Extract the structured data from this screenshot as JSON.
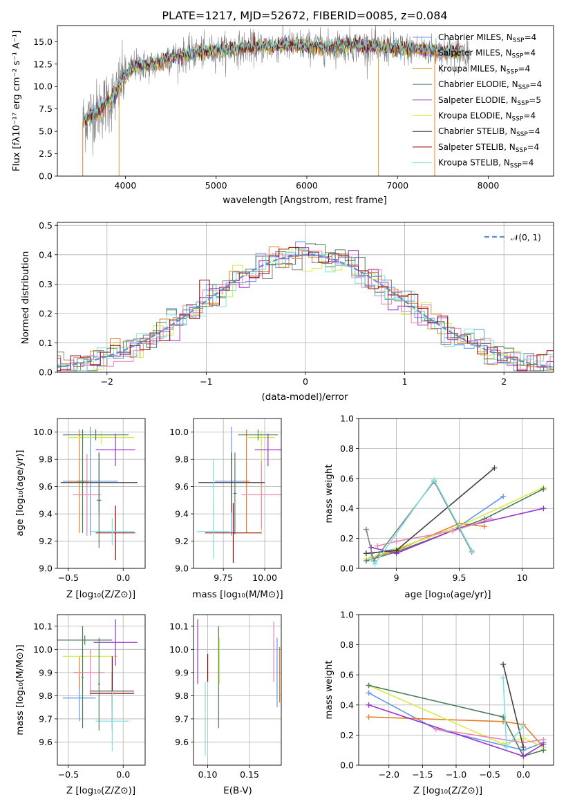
{
  "colors": {
    "chabrier_miles": "#6495ed",
    "salpeter_miles": "#e67e22",
    "kroupa_miles": "#d4a017",
    "chabrier_elodie": "#4a7c59",
    "salpeter_elodie": "#9932cc",
    "kroupa_elodie": "#d4ec4a",
    "chabrier_stelib": "#404040",
    "salpeter_stelib": "#8b0000",
    "kroupa_stelib": "#7fe0e0",
    "pink": "#ee82b0",
    "gauss": "#5b8ed6",
    "raw": "#808080"
  },
  "chart_data": [
    {
      "id": "spectrum",
      "type": "line",
      "title": "PLATE=1217, MJD=52672, FIBERID=0085, z=0.084",
      "xlabel": "wavelength [Angstrom, rest frame]",
      "ylabel": "Flux [fλ10⁻¹⁷ erg cm⁻² s⁻¹ A⁻¹]",
      "xlim": [
        3250,
        8720
      ],
      "ylim": [
        0,
        16.8
      ],
      "xticks": [
        4000,
        5000,
        6000,
        7000,
        8000
      ],
      "yticks": [
        0.0,
        2.5,
        5.0,
        7.5,
        10.0,
        12.5,
        15.0
      ],
      "grid": false,
      "legend_position": "right",
      "legend": [
        {
          "label": "Chabrier MILES, N",
          "sub": "SSP",
          "tail": "=4",
          "color_key": "chabrier_miles"
        },
        {
          "label": "Salpeter MILES, N",
          "sub": "SSP",
          "tail": "=4",
          "color_key": "salpeter_miles"
        },
        {
          "label": "Kroupa MILES, N",
          "sub": "SSP",
          "tail": "=4",
          "color_key": "kroupa_miles"
        },
        {
          "label": "Chabrier ELODIE, N",
          "sub": "SSP",
          "tail": "=4",
          "color_key": "chabrier_elodie"
        },
        {
          "label": "Salpeter ELODIE, N",
          "sub": "SSP",
          "tail": "=5",
          "color_key": "salpeter_elodie"
        },
        {
          "label": "Kroupa ELODIE, N",
          "sub": "SSP",
          "tail": "=4",
          "color_key": "kroupa_elodie"
        },
        {
          "label": "Chabrier STELIB, N",
          "sub": "SSP",
          "tail": "=4",
          "color_key": "chabrier_stelib"
        },
        {
          "label": "Salpeter STELIB, N",
          "sub": "SSP",
          "tail": "=4",
          "color_key": "salpeter_stelib"
        },
        {
          "label": "Kroupa STELIB, N",
          "sub": "SSP",
          "tail": "=4",
          "color_key": "kroupa_stelib"
        }
      ],
      "continuum": {
        "wavelength": [
          3530,
          3600,
          3700,
          3800,
          3900,
          3950,
          4000,
          4100,
          4300,
          4500,
          4700,
          5000,
          5300,
          5600,
          5900,
          6200,
          6500,
          6800,
          7100,
          7400,
          7700
        ],
        "flux": [
          6.0,
          6.8,
          7.3,
          8.3,
          9.0,
          10.5,
          11.3,
          12.3,
          12.4,
          13.2,
          13.6,
          14.0,
          14.3,
          14.5,
          14.6,
          14.4,
          14.6,
          14.3,
          14.2,
          14.0,
          13.8
        ]
      },
      "wavelength_range": [
        3530,
        7800
      ]
    },
    {
      "id": "residuals",
      "type": "histogram",
      "xlabel": "(data-model)/error",
      "ylabel": "Normed distribution",
      "xlim": [
        -2.5,
        2.5
      ],
      "ylim": [
        0,
        0.51
      ],
      "xticks": [
        -2,
        -1,
        0,
        1,
        2
      ],
      "xtick_labels": [
        "−2",
        "−1",
        "0",
        "1",
        "2"
      ],
      "yticks": [
        0.0,
        0.1,
        0.2,
        0.3,
        0.4,
        0.5
      ],
      "grid": true,
      "legend": [
        {
          "label": "𝒩(0, 1)",
          "color_key": "gauss"
        }
      ],
      "gaussian": {
        "mu": 0,
        "sigma": 1
      },
      "bin_width": 0.1
    },
    {
      "id": "age_vs_Z",
      "type": "errorbar",
      "xlabel": "Z [log₁₀(Z/Z⊙)]",
      "ylabel": "age  [log₁₀(age/yr)]",
      "xlim": [
        -0.6,
        0.2
      ],
      "ylim": [
        9.0,
        10.1
      ],
      "xticks": [
        -0.5,
        0.0
      ],
      "xtick_labels": [
        "−0.5",
        "0.0"
      ],
      "yticks": [
        9.0,
        9.2,
        9.4,
        9.6,
        9.8,
        10.0
      ],
      "grid": true,
      "series": [
        {
          "color_key": "chabrier_miles",
          "x": -0.3,
          "xerr": 0.25,
          "y": 9.64,
          "yerr": 0.4
        },
        {
          "color_key": "salpeter_miles",
          "x": -0.4,
          "xerr": 0.1,
          "y": 9.64,
          "yerr": 0.38
        },
        {
          "color_key": "kroupa_elodie",
          "x": -0.2,
          "xerr": 0.3,
          "y": 9.96,
          "yerr": 0.05
        },
        {
          "color_key": "chabrier_elodie",
          "x": -0.25,
          "xerr": 0.3,
          "y": 9.98,
          "yerr": 0.04
        },
        {
          "color_key": "chabrier_elodie",
          "x": -0.37,
          "xerr": 0.05,
          "y": 9.64,
          "yerr": 0.38
        },
        {
          "color_key": "salpeter_elodie",
          "x": -0.07,
          "xerr": 0.18,
          "y": 9.87,
          "yerr": 0.12
        },
        {
          "color_key": "pink",
          "x": -0.33,
          "xerr": 0.13,
          "y": 9.54,
          "yerr": 0.3
        },
        {
          "color_key": "chabrier_stelib",
          "x": -0.22,
          "xerr": 0.35,
          "y": 9.63,
          "yerr": 0.22
        },
        {
          "color_key": "salpeter_stelib",
          "x": -0.07,
          "xerr": 0.18,
          "y": 9.26,
          "yerr": 0.2
        },
        {
          "color_key": "kroupa_stelib",
          "x": -0.1,
          "xerr": 0.2,
          "y": 9.27,
          "yerr": 0.1
        },
        {
          "color_key": "chabrier_elodie",
          "x": -0.22,
          "xerr": 0.02,
          "y": 9.5,
          "yerr": 0.35
        }
      ]
    },
    {
      "id": "age_vs_mass",
      "type": "errorbar",
      "xlabel": "mass [log₁₀(M/M⊙)]",
      "ylabel": "",
      "xlim": [
        9.57,
        10.1
      ],
      "ylim": [
        9.0,
        10.1
      ],
      "xticks": [
        9.75,
        10.0
      ],
      "xtick_labels": [
        "9.75",
        "10.00"
      ],
      "yticks": [
        9.0,
        9.2,
        9.4,
        9.6,
        9.8,
        10.0
      ],
      "grid": true,
      "series": [
        {
          "color_key": "chabrier_miles",
          "x": 9.8,
          "xerr": 0.1,
          "y": 9.64,
          "yerr": 0.4
        },
        {
          "color_key": "salpeter_miles",
          "x": 9.89,
          "xerr": 0.02,
          "y": 9.64,
          "yerr": 0.38
        },
        {
          "color_key": "kroupa_elodie",
          "x": 9.98,
          "xerr": 0.08,
          "y": 9.96,
          "yerr": 0.05
        },
        {
          "color_key": "kroupa_elodie",
          "x": 9.98,
          "xerr": 0.01,
          "y": 9.6,
          "yerr": 0.35
        },
        {
          "color_key": "chabrier_elodie",
          "x": 9.96,
          "xerr": 0.12,
          "y": 9.98,
          "yerr": 0.04
        },
        {
          "color_key": "salpeter_elodie",
          "x": 10.02,
          "xerr": 0.08,
          "y": 9.87,
          "yerr": 0.12
        },
        {
          "color_key": "pink",
          "x": 9.98,
          "xerr": 0.12,
          "y": 9.54,
          "yerr": 0.25
        },
        {
          "color_key": "chabrier_stelib",
          "x": 9.8,
          "xerr": 0.2,
          "y": 9.63,
          "yerr": 0.22
        },
        {
          "color_key": "salpeter_stelib",
          "x": 9.81,
          "xerr": 0.17,
          "y": 9.26,
          "yerr": 0.22
        },
        {
          "color_key": "kroupa_stelib",
          "x": 9.69,
          "xerr": 0.1,
          "y": 9.27,
          "yerr": 0.2
        },
        {
          "color_key": "kroupa_stelib",
          "x": 9.69,
          "xerr": 0.01,
          "y": 9.6,
          "yerr": 0.2
        },
        {
          "color_key": "chabrier_elodie",
          "x": 9.82,
          "xerr": 0.01,
          "y": 9.55,
          "yerr": 0.3
        }
      ]
    },
    {
      "id": "weight_vs_age",
      "type": "line",
      "xlabel": "age  [log₁₀(age/yr)]",
      "ylabel": "mass weight",
      "xlim": [
        8.7,
        10.25
      ],
      "ylim": [
        0,
        1.0
      ],
      "xticks": [
        9.0,
        9.5,
        10.0
      ],
      "yticks": [
        0.0,
        0.2,
        0.4,
        0.6,
        0.8,
        1.0
      ],
      "grid": true,
      "series": [
        {
          "color_key": "chabrier_miles",
          "x": [
            8.8,
            9.0,
            9.5,
            9.85
          ],
          "y": [
            0.1,
            0.13,
            0.28,
            0.48
          ]
        },
        {
          "color_key": "salpeter_miles",
          "x": [
            8.8,
            9.0,
            9.5,
            9.7
          ],
          "y": [
            0.07,
            0.12,
            0.3,
            0.28
          ]
        },
        {
          "color_key": "kroupa_elodie",
          "x": [
            8.76,
            9.0,
            9.5,
            10.17
          ],
          "y": [
            0.06,
            0.13,
            0.28,
            0.54
          ]
        },
        {
          "color_key": "chabrier_elodie",
          "x": [
            8.76,
            9.0,
            9.7,
            10.17
          ],
          "y": [
            0.05,
            0.11,
            0.33,
            0.53
          ]
        },
        {
          "color_key": "salpeter_elodie",
          "x": [
            8.8,
            9.0,
            9.5,
            10.17
          ],
          "y": [
            0.14,
            0.1,
            0.27,
            0.4
          ]
        },
        {
          "color_key": "pink",
          "x": [
            8.85,
            9.0,
            9.45,
            9.75
          ],
          "y": [
            0.15,
            0.18,
            0.25,
            0.33
          ]
        },
        {
          "color_key": "chabrier_stelib",
          "x": [
            8.76,
            9.0,
            9.78
          ],
          "y": [
            0.1,
            0.12,
            0.67
          ]
        },
        {
          "color_key": "raw",
          "x": [
            8.76,
            8.82,
            9.3,
            9.6
          ],
          "y": [
            0.26,
            0.05,
            0.58,
            0.11
          ]
        },
        {
          "color_key": "kroupa_stelib",
          "x": [
            8.8,
            8.83,
            9.3,
            9.6
          ],
          "y": [
            0.06,
            0.03,
            0.59,
            0.12
          ]
        }
      ]
    },
    {
      "id": "mass_vs_Z",
      "type": "errorbar",
      "xlabel": "Z [log₁₀(Z/Z⊙)]",
      "ylabel": "mass [log₁₀(M/M⊙)]",
      "xlim": [
        -0.6,
        0.2
      ],
      "ylim": [
        9.5,
        10.15
      ],
      "xticks": [
        -0.5,
        0.0
      ],
      "xtick_labels": [
        "−0.5",
        "0.0"
      ],
      "yticks": [
        9.6,
        9.7,
        9.8,
        9.9,
        10.0,
        10.1
      ],
      "grid": true,
      "series": [
        {
          "color_key": "chabrier_miles",
          "x": -0.4,
          "xerr": 0.15,
          "y": 9.79,
          "yerr": 0.1
        },
        {
          "color_key": "salpeter_miles",
          "x": -0.4,
          "xerr": 0.05,
          "y": 9.9,
          "yerr": 0.07
        },
        {
          "color_key": "kroupa_elodie",
          "x": -0.3,
          "xerr": 0.25,
          "y": 9.97,
          "yerr": 0.03
        },
        {
          "color_key": "chabrier_elodie",
          "x": -0.35,
          "xerr": 0.25,
          "y": 10.04,
          "yerr": 0.02
        },
        {
          "color_key": "chabrier_elodie",
          "x": -0.37,
          "xerr": 0.01,
          "y": 9.88,
          "yerr": 0.22
        },
        {
          "color_key": "salpeter_elodie",
          "x": -0.07,
          "xerr": 0.2,
          "y": 10.03,
          "yerr": 0.1
        },
        {
          "color_key": "pink",
          "x": -0.3,
          "xerr": 0.13,
          "y": 9.9,
          "yerr": 0.1
        },
        {
          "color_key": "chabrier_stelib",
          "x": -0.1,
          "xerr": 0.2,
          "y": 9.82,
          "yerr": 0.08
        },
        {
          "color_key": "salpeter_stelib",
          "x": -0.1,
          "xerr": 0.2,
          "y": 9.81,
          "yerr": 0.16
        },
        {
          "color_key": "kroupa_stelib",
          "x": -0.1,
          "xerr": 0.15,
          "y": 9.69,
          "yerr": 0.13
        },
        {
          "color_key": "chabrier_elodie",
          "x": -0.22,
          "xerr": 0.01,
          "y": 9.85,
          "yerr": 0.2
        }
      ]
    },
    {
      "id": "mass_vs_ebv",
      "type": "errorbar",
      "xlabel": "E(B-V)",
      "ylabel": "",
      "xlim": [
        0.083,
        0.188
      ],
      "ylim": [
        9.5,
        10.15
      ],
      "xticks": [
        0.1,
        0.15
      ],
      "xtick_labels": [
        "0.10",
        "0.15"
      ],
      "yticks": [
        9.6,
        9.7,
        9.8,
        9.9,
        10.0,
        10.1
      ],
      "grid": true,
      "series": [
        {
          "color_key": "salpeter_elodie",
          "x": 0.088,
          "xerr": 0,
          "y": 9.99,
          "yerr": 0.14
        },
        {
          "color_key": "kroupa_stelib",
          "x": 0.097,
          "xerr": 0,
          "y": 9.7,
          "yerr": 0.16
        },
        {
          "color_key": "salpeter_stelib",
          "x": 0.1,
          "xerr": 0,
          "y": 9.92,
          "yerr": 0.06
        },
        {
          "color_key": "chabrier_elodie",
          "x": 0.113,
          "xerr": 0,
          "y": 9.88,
          "yerr": 0.22
        },
        {
          "color_key": "kroupa_elodie",
          "x": 0.114,
          "xerr": 0,
          "y": 9.95,
          "yerr": 0.1
        },
        {
          "color_key": "pink",
          "x": 0.179,
          "xerr": 0,
          "y": 9.99,
          "yerr": 0.13
        },
        {
          "color_key": "chabrier_miles",
          "x": 0.183,
          "xerr": 0,
          "y": 9.9,
          "yerr": 0.15
        },
        {
          "color_key": "salpeter_miles",
          "x": 0.186,
          "xerr": 0,
          "y": 9.89,
          "yerr": 0.12
        }
      ]
    },
    {
      "id": "weight_vs_Z",
      "type": "line",
      "xlabel": "Z [log₁₀(Z/Z⊙)]",
      "ylabel": "mass weight",
      "xlim": [
        -2.45,
        0.45
      ],
      "ylim": [
        0,
        1.0
      ],
      "xticks": [
        -2.0,
        -1.5,
        -1.0,
        -0.5,
        0.0
      ],
      "xtick_labels": [
        "−2.0",
        "−1.5",
        "−1.0",
        "−0.5",
        "0.0"
      ],
      "yticks": [
        0.0,
        0.2,
        0.4,
        0.6,
        0.8,
        1.0
      ],
      "grid": true,
      "series": [
        {
          "color_key": "chabrier_miles",
          "x": [
            -2.3,
            -1.3,
            0.0,
            0.3
          ],
          "y": [
            0.48,
            0.24,
            0.1,
            0.15
          ]
        },
        {
          "color_key": "salpeter_miles",
          "x": [
            -2.3,
            -0.3,
            0.0,
            0.3
          ],
          "y": [
            0.32,
            0.29,
            0.27,
            0.12
          ]
        },
        {
          "color_key": "kroupa_elodie",
          "x": [
            -2.3,
            -0.3,
            0.0,
            0.3
          ],
          "y": [
            0.53,
            0.14,
            0.18,
            0.12
          ]
        },
        {
          "color_key": "chabrier_elodie",
          "x": [
            -2.3,
            -0.3,
            0.0,
            0.3
          ],
          "y": [
            0.53,
            0.32,
            0.06,
            0.1
          ]
        },
        {
          "color_key": "salpeter_elodie",
          "x": [
            -2.3,
            0.0,
            0.3
          ],
          "y": [
            0.4,
            0.06,
            0.14
          ]
        },
        {
          "color_key": "pink",
          "x": [
            -1.3,
            0.0,
            0.3
          ],
          "y": [
            0.24,
            0.15,
            0.17
          ]
        },
        {
          "color_key": "chabrier_stelib",
          "x": [
            -0.3,
            0.0
          ],
          "y": [
            0.67,
            0.12
          ]
        },
        {
          "color_key": "kroupa_stelib",
          "x": [
            -0.3,
            -0.25,
            0.0
          ],
          "y": [
            0.58,
            0.12,
            0.26
          ]
        }
      ]
    }
  ]
}
